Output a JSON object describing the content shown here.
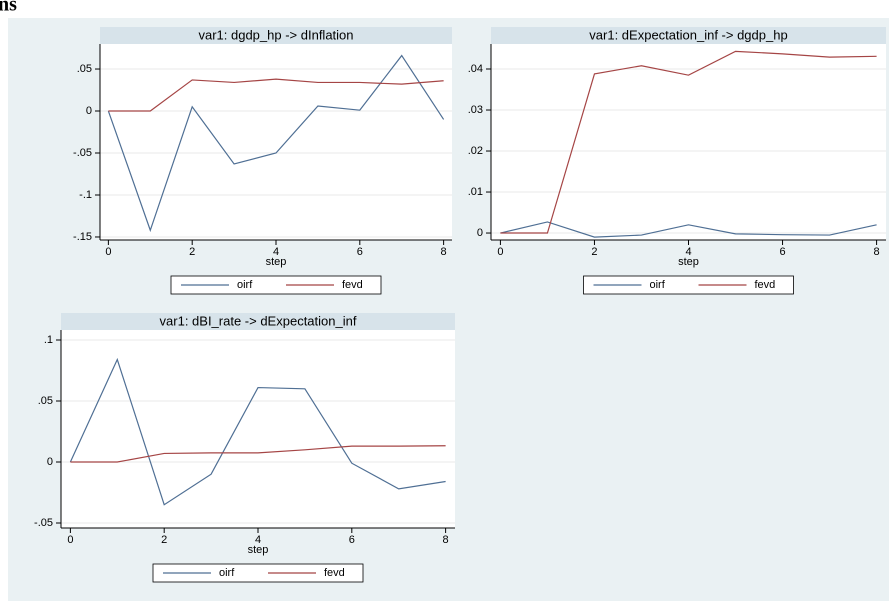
{
  "heading": "ns",
  "chart_data": [
    {
      "type": "line",
      "title": "var1: dgdp_hp -> dInflation",
      "x_label": "step",
      "x": [
        0,
        1,
        2,
        3,
        4,
        5,
        6,
        7,
        8
      ],
      "xlim": [
        -0.2,
        8.2
      ],
      "xticks": [
        0,
        2,
        4,
        6,
        8
      ],
      "ylim": [
        -0.1536,
        0.0798
      ],
      "yticks": [
        {
          "value": 0.05,
          "label": ".05"
        },
        0,
        {
          "value": -0.05,
          "label": "-.05"
        },
        {
          "value": -0.1,
          "label": "-.1"
        },
        {
          "value": -0.15,
          "label": "-.15"
        }
      ],
      "grid": true,
      "legend": "bottom",
      "series": [
        {
          "name": "oirf",
          "color": "#4f6f94",
          "values": [
            0,
            -0.142,
            0.005,
            -0.063,
            -0.05,
            0.006,
            0.001,
            0.066,
            -0.01
          ]
        },
        {
          "name": "fevd",
          "color": "#a54545",
          "values": [
            0,
            0,
            0.037,
            0.034,
            0.038,
            0.034,
            0.034,
            0.032,
            0.036
          ]
        }
      ]
    },
    {
      "type": "line",
      "title": "var1: dExpectation_inf -> dgdp_hp",
      "x_label": "step",
      "x": [
        0,
        1,
        2,
        3,
        4,
        5,
        6,
        7,
        8
      ],
      "xlim": [
        -0.2,
        8.2
      ],
      "xticks": [
        0,
        2,
        4,
        6,
        8
      ],
      "ylim": [
        -0.0017,
        0.0461
      ],
      "yticks": [
        {
          "value": 0.04,
          "label": ".04"
        },
        {
          "value": 0.03,
          "label": ".03"
        },
        {
          "value": 0.02,
          "label": ".02"
        },
        {
          "value": 0.01,
          "label": ".01"
        },
        0
      ],
      "grid": true,
      "legend": "bottom",
      "series": [
        {
          "name": "oirf",
          "color": "#4f6f94",
          "values": [
            0,
            0.0027,
            -0.001,
            -0.0005,
            0.002,
            -0.0002,
            -0.0004,
            -0.0005,
            0.002
          ]
        },
        {
          "name": "fevd",
          "color": "#a54545",
          "values": [
            0,
            0,
            0.0388,
            0.0408,
            0.0385,
            0.0443,
            0.0437,
            0.0429,
            0.0431
          ]
        }
      ]
    },
    {
      "type": "line",
      "title": "var1: dBI_rate -> dExpectation_inf",
      "x_label": "step",
      "x": [
        0,
        1,
        2,
        3,
        4,
        5,
        6,
        7,
        8
      ],
      "xlim": [
        -0.2,
        8.2
      ],
      "xticks": [
        0,
        2,
        4,
        6,
        8
      ],
      "ylim": [
        -0.0541,
        0.1082
      ],
      "yticks": [
        {
          "value": 0.1,
          "label": ".1"
        },
        {
          "value": 0.05,
          "label": ".05"
        },
        0,
        {
          "value": -0.05,
          "label": "-.05"
        }
      ],
      "grid": true,
      "legend": "bottom",
      "series": [
        {
          "name": "oirf",
          "color": "#4f6f94",
          "values": [
            0,
            0.084,
            -0.035,
            -0.01,
            0.061,
            0.06,
            -0.001,
            -0.022,
            -0.016
          ]
        },
        {
          "name": "fevd",
          "color": "#a54545",
          "values": [
            0,
            0,
            0.007,
            0.0075,
            0.0075,
            0.01,
            0.013,
            0.013,
            0.0133
          ]
        }
      ]
    }
  ]
}
